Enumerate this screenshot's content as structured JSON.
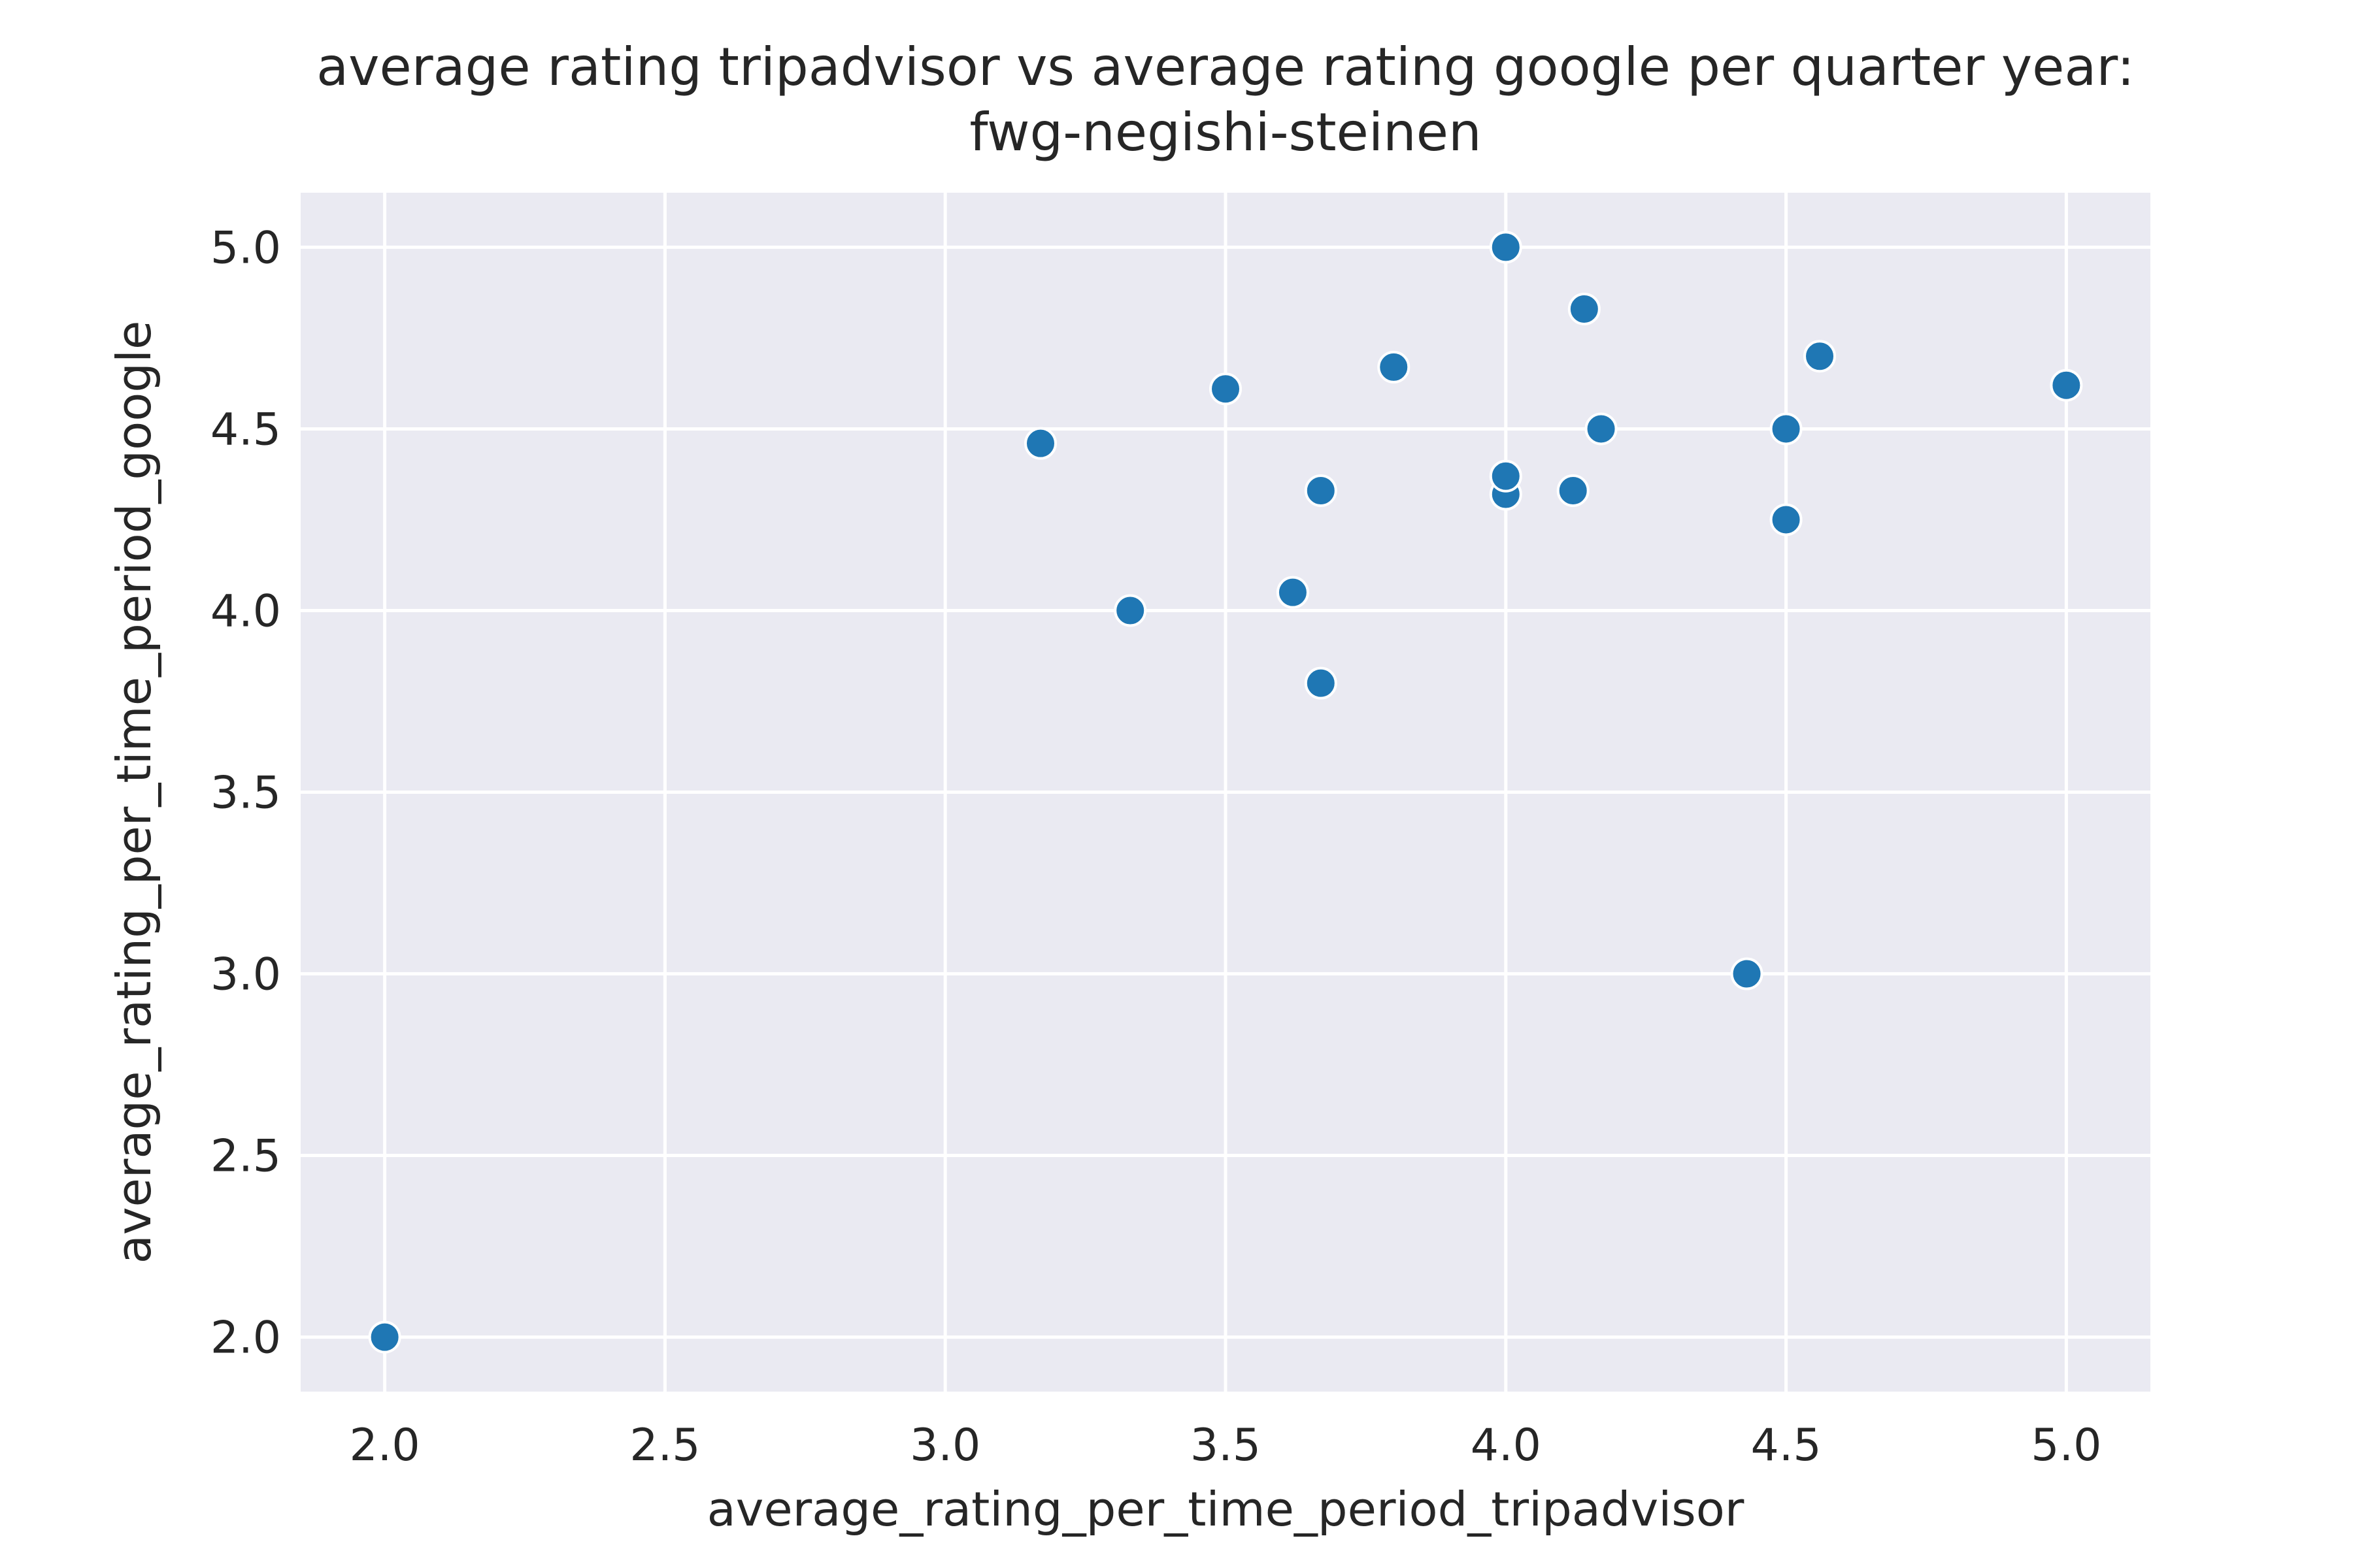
{
  "chart_data": {
    "type": "scatter",
    "title": [
      "average rating tripadvisor vs average rating google per quarter year:",
      "fwg-negishi-steinen"
    ],
    "xlabel": "average_rating_per_time_period_tripadvisor",
    "ylabel": "average_rating_per_time_period_google",
    "xlim": [
      1.85,
      5.15
    ],
    "ylim": [
      1.85,
      5.15
    ],
    "x_ticks": [
      2.0,
      2.5,
      3.0,
      3.5,
      4.0,
      4.5,
      5.0
    ],
    "x_tick_labels": [
      "2.0",
      "2.5",
      "3.0",
      "3.5",
      "4.0",
      "4.5",
      "5.0"
    ],
    "y_ticks": [
      2.0,
      2.5,
      3.0,
      3.5,
      4.0,
      4.5,
      5.0
    ],
    "y_tick_labels": [
      "2.0",
      "2.5",
      "3.0",
      "3.5",
      "4.0",
      "4.5",
      "5.0"
    ],
    "grid": true,
    "colors": {
      "plot_background": "#eaeaf2",
      "grid": "#ffffff",
      "marker": "#1f77b4",
      "marker_edge": "#ffffff",
      "text": "#262626"
    },
    "points": [
      {
        "x": 2.0,
        "y": 2.0
      },
      {
        "x": 3.17,
        "y": 4.46
      },
      {
        "x": 3.33,
        "y": 4.0
      },
      {
        "x": 3.5,
        "y": 4.61
      },
      {
        "x": 3.62,
        "y": 4.05
      },
      {
        "x": 3.67,
        "y": 4.33
      },
      {
        "x": 3.67,
        "y": 3.8
      },
      {
        "x": 3.8,
        "y": 4.67
      },
      {
        "x": 4.0,
        "y": 5.0
      },
      {
        "x": 4.0,
        "y": 4.32
      },
      {
        "x": 4.0,
        "y": 4.37
      },
      {
        "x": 4.12,
        "y": 4.33
      },
      {
        "x": 4.14,
        "y": 4.83
      },
      {
        "x": 4.17,
        "y": 4.5
      },
      {
        "x": 4.43,
        "y": 3.0
      },
      {
        "x": 4.5,
        "y": 4.5
      },
      {
        "x": 4.5,
        "y": 4.25
      },
      {
        "x": 4.56,
        "y": 4.7
      },
      {
        "x": 5.0,
        "y": 4.62
      }
    ]
  }
}
